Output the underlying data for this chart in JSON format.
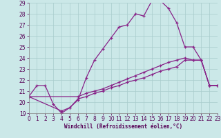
{
  "background_color": "#cbe8e8",
  "grid_color": "#a8cccc",
  "line_color": "#882288",
  "xlabel": "Windchill (Refroidissement éolien,°C)",
  "ylim": [
    19,
    29
  ],
  "xlim": [
    0,
    23
  ],
  "yticks": [
    19,
    20,
    21,
    22,
    23,
    24,
    25,
    26,
    27,
    28,
    29
  ],
  "xticks": [
    0,
    1,
    2,
    3,
    4,
    5,
    6,
    7,
    8,
    9,
    10,
    11,
    12,
    13,
    14,
    15,
    16,
    17,
    18,
    19,
    20,
    21,
    22,
    23
  ],
  "line1_x": [
    0,
    1,
    2,
    3,
    4,
    5,
    6,
    7,
    8,
    9,
    10,
    11,
    12,
    13,
    14,
    15,
    16,
    17,
    18,
    19,
    20,
    21,
    22,
    23
  ],
  "line1_y": [
    20.5,
    21.5,
    21.5,
    19.8,
    19.0,
    19.5,
    20.2,
    22.2,
    23.8,
    24.8,
    25.8,
    26.8,
    27.0,
    28.0,
    27.8,
    29.2,
    29.2,
    28.5,
    27.2,
    25.0,
    25.0,
    23.8,
    21.5,
    21.5
  ],
  "line2_x": [
    0,
    4,
    5,
    6,
    7,
    8,
    9,
    10,
    11,
    12,
    13,
    14,
    15,
    16,
    17,
    18,
    19,
    20,
    21,
    22,
    23
  ],
  "line2_y": [
    20.5,
    19.2,
    19.5,
    20.3,
    20.5,
    20.8,
    21.0,
    21.3,
    21.5,
    21.8,
    22.0,
    22.2,
    22.5,
    22.8,
    23.0,
    23.2,
    23.8,
    23.8,
    23.8,
    21.5,
    21.5
  ],
  "line3_x": [
    0,
    6,
    7,
    8,
    9,
    10,
    11,
    12,
    13,
    14,
    15,
    16,
    17,
    18,
    19,
    20,
    21,
    22,
    23
  ],
  "line3_y": [
    20.5,
    20.5,
    20.8,
    21.0,
    21.2,
    21.5,
    21.8,
    22.1,
    22.4,
    22.7,
    23.0,
    23.3,
    23.6,
    23.8,
    24.0,
    23.8,
    23.8,
    21.5,
    21.5
  ]
}
